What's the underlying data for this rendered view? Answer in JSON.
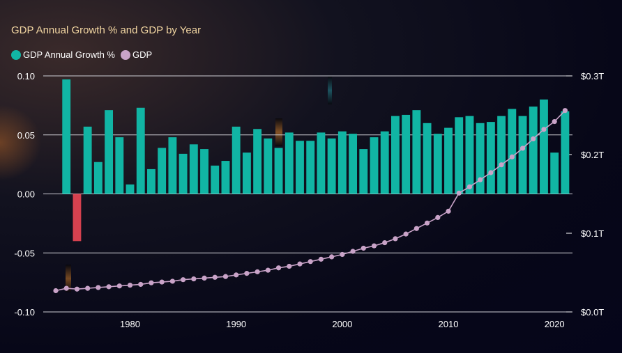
{
  "chart_data": {
    "type": "bar",
    "title": "GDP Annual Growth % and GDP by Year",
    "legend_position": "top-left",
    "colors": {
      "growth_positive": "#11b5a4",
      "growth_negative": "#d6414f",
      "gdp_line": "#c9a3c8",
      "grid": "#cfcfd6",
      "title": "#f2d6a2"
    },
    "series": [
      {
        "name": "GDP Annual Growth %",
        "axis": "left",
        "type": "bar",
        "x": [
          1974,
          1975,
          1976,
          1977,
          1978,
          1979,
          1980,
          1981,
          1982,
          1983,
          1984,
          1985,
          1986,
          1987,
          1988,
          1989,
          1990,
          1991,
          1992,
          1993,
          1994,
          1995,
          1996,
          1997,
          1998,
          1999,
          2000,
          2001,
          2002,
          2003,
          2004,
          2005,
          2006,
          2007,
          2008,
          2009,
          2010,
          2011,
          2012,
          2013,
          2014,
          2015,
          2016,
          2017,
          2018,
          2019,
          2020,
          2021
        ],
        "values": [
          0.097,
          -0.04,
          0.057,
          0.027,
          0.071,
          0.048,
          0.008,
          0.073,
          0.021,
          0.039,
          0.048,
          0.034,
          0.042,
          0.038,
          0.024,
          0.028,
          0.057,
          0.035,
          0.055,
          0.047,
          0.039,
          0.052,
          0.045,
          0.045,
          0.052,
          0.047,
          0.053,
          0.051,
          0.038,
          0.048,
          0.053,
          0.066,
          0.067,
          0.071,
          0.06,
          0.051,
          0.056,
          0.065,
          0.066,
          0.06,
          0.061,
          0.066,
          0.072,
          0.066,
          0.074,
          0.08,
          0.035,
          0.07
        ]
      },
      {
        "name": "GDP",
        "axis": "right",
        "type": "line",
        "x": [
          1973,
          1974,
          1975,
          1976,
          1977,
          1978,
          1979,
          1980,
          1981,
          1982,
          1983,
          1984,
          1985,
          1986,
          1987,
          1988,
          1989,
          1990,
          1991,
          1992,
          1993,
          1994,
          1995,
          1996,
          1997,
          1998,
          1999,
          2000,
          2001,
          2002,
          2003,
          2004,
          2005,
          2006,
          2007,
          2008,
          2009,
          2010,
          2011,
          2012,
          2013,
          2014,
          2015,
          2016,
          2017,
          2018,
          2019,
          2020,
          2021
        ],
        "values": [
          0.027,
          0.03,
          0.029,
          0.03,
          0.031,
          0.032,
          0.033,
          0.034,
          0.035,
          0.037,
          0.038,
          0.039,
          0.041,
          0.042,
          0.043,
          0.044,
          0.045,
          0.047,
          0.049,
          0.051,
          0.053,
          0.056,
          0.058,
          0.061,
          0.064,
          0.067,
          0.07,
          0.073,
          0.077,
          0.081,
          0.084,
          0.088,
          0.093,
          0.099,
          0.106,
          0.113,
          0.12,
          0.128,
          0.151,
          0.159,
          0.168,
          0.177,
          0.187,
          0.197,
          0.208,
          0.22,
          0.232,
          0.242,
          0.256
        ]
      }
    ],
    "y_left": {
      "ylim": [
        -0.1,
        0.1
      ],
      "ticks": [
        "0.10",
        "0.05",
        "0.00",
        "-0.05",
        "-0.10"
      ],
      "tick_values": [
        0.1,
        0.05,
        0,
        -0.05,
        -0.1
      ],
      "grid": true
    },
    "y_right": {
      "ylim": [
        0,
        0.3
      ],
      "ticks": [
        "$0.3T",
        "$0.2T",
        "$0.1T",
        "$0.0T"
      ],
      "tick_values": [
        0.3,
        0.2,
        0.1,
        0
      ]
    },
    "x_ticks": [
      "1980",
      "1990",
      "2000",
      "2010",
      "2020"
    ],
    "x_tick_values": [
      1980,
      1990,
      2000,
      2010,
      2020
    ]
  }
}
